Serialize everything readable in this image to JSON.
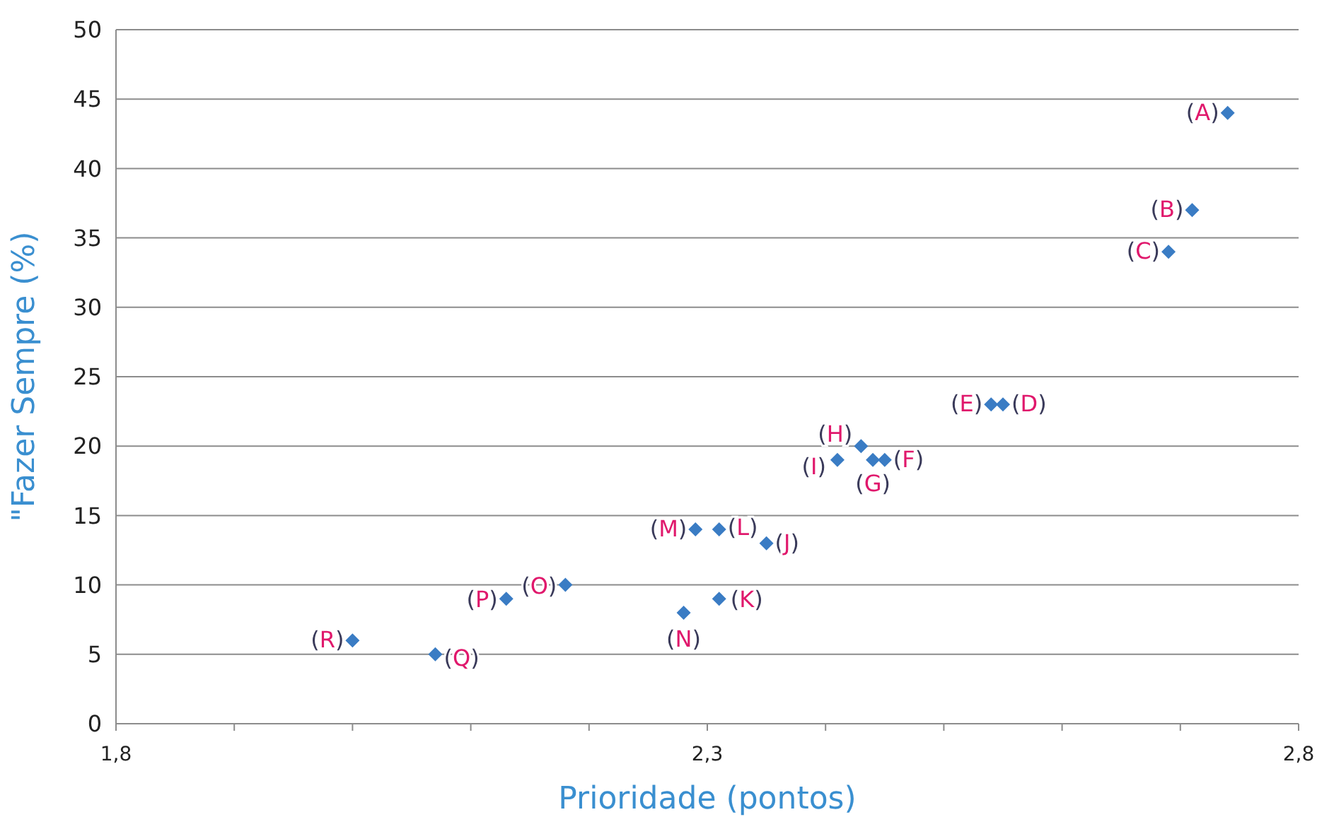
{
  "chart_data": {
    "type": "scatter",
    "xlabel": "Prioridade (pontos)",
    "ylabel": "\"Fazer Sempre  (%)",
    "x": [
      2.74,
      2.71,
      2.69,
      2.55,
      2.54,
      2.45,
      2.44,
      2.43,
      2.41,
      2.35,
      2.31,
      2.31,
      2.29,
      2.28,
      2.18,
      2.13,
      2.07,
      2.0
    ],
    "series": [
      {
        "color": "#3a7cc4",
        "values": [
          44,
          37,
          34,
          23,
          23,
          19,
          19,
          20,
          19,
          13,
          9,
          14,
          14,
          8,
          10,
          9,
          5,
          6
        ]
      }
    ],
    "annotations": [
      {
        "text": "(A)",
        "x": 2.74,
        "y": 44
      },
      {
        "text": "(B)",
        "x": 2.71,
        "y": 37
      },
      {
        "text": "(C)",
        "x": 2.69,
        "y": 34
      },
      {
        "text": "(D)",
        "x": 2.55,
        "y": 23
      },
      {
        "text": "(E)",
        "x": 2.54,
        "y": 23
      },
      {
        "text": "(F)",
        "x": 2.45,
        "y": 19
      },
      {
        "text": "(G)",
        "x": 2.44,
        "y": 19
      },
      {
        "text": "(H)",
        "x": 2.43,
        "y": 20
      },
      {
        "text": "(I)",
        "x": 2.41,
        "y": 19
      },
      {
        "text": "(J)",
        "x": 2.35,
        "y": 13
      },
      {
        "text": "(K)",
        "x": 2.31,
        "y": 9
      },
      {
        "text": "(L)",
        "x": 2.31,
        "y": 14
      },
      {
        "text": "(M)",
        "x": 2.29,
        "y": 14
      },
      {
        "text": "(N)",
        "x": 2.28,
        "y": 8
      },
      {
        "text": "(O)",
        "x": 2.18,
        "y": 10
      },
      {
        "text": "(P)",
        "x": 2.13,
        "y": 9
      },
      {
        "text": "(Q)",
        "x": 2.07,
        "y": 5
      },
      {
        "text": "(R)",
        "x": 2.0,
        "y": 6
      }
    ],
    "xlim": [
      1.8,
      2.8
    ],
    "xticks": [
      {
        "value": 1.8,
        "label": "1,8"
      },
      {
        "value": 1.9,
        "label": null
      },
      {
        "value": 2.0,
        "label": null
      },
      {
        "value": 2.1,
        "label": null
      },
      {
        "value": 2.2,
        "label": null
      },
      {
        "value": 2.3,
        "label": "2,3"
      },
      {
        "value": 2.4,
        "label": null
      },
      {
        "value": 2.5,
        "label": null
      },
      {
        "value": 2.6,
        "label": null
      },
      {
        "value": 2.7,
        "label": null
      },
      {
        "value": 2.8,
        "label": "2,8"
      }
    ],
    "ylim": [
      0,
      50
    ],
    "yticks": [
      0,
      5,
      10,
      15,
      20,
      25,
      30,
      35,
      40,
      45,
      50
    ],
    "grid": "y",
    "marker": "diamond"
  }
}
